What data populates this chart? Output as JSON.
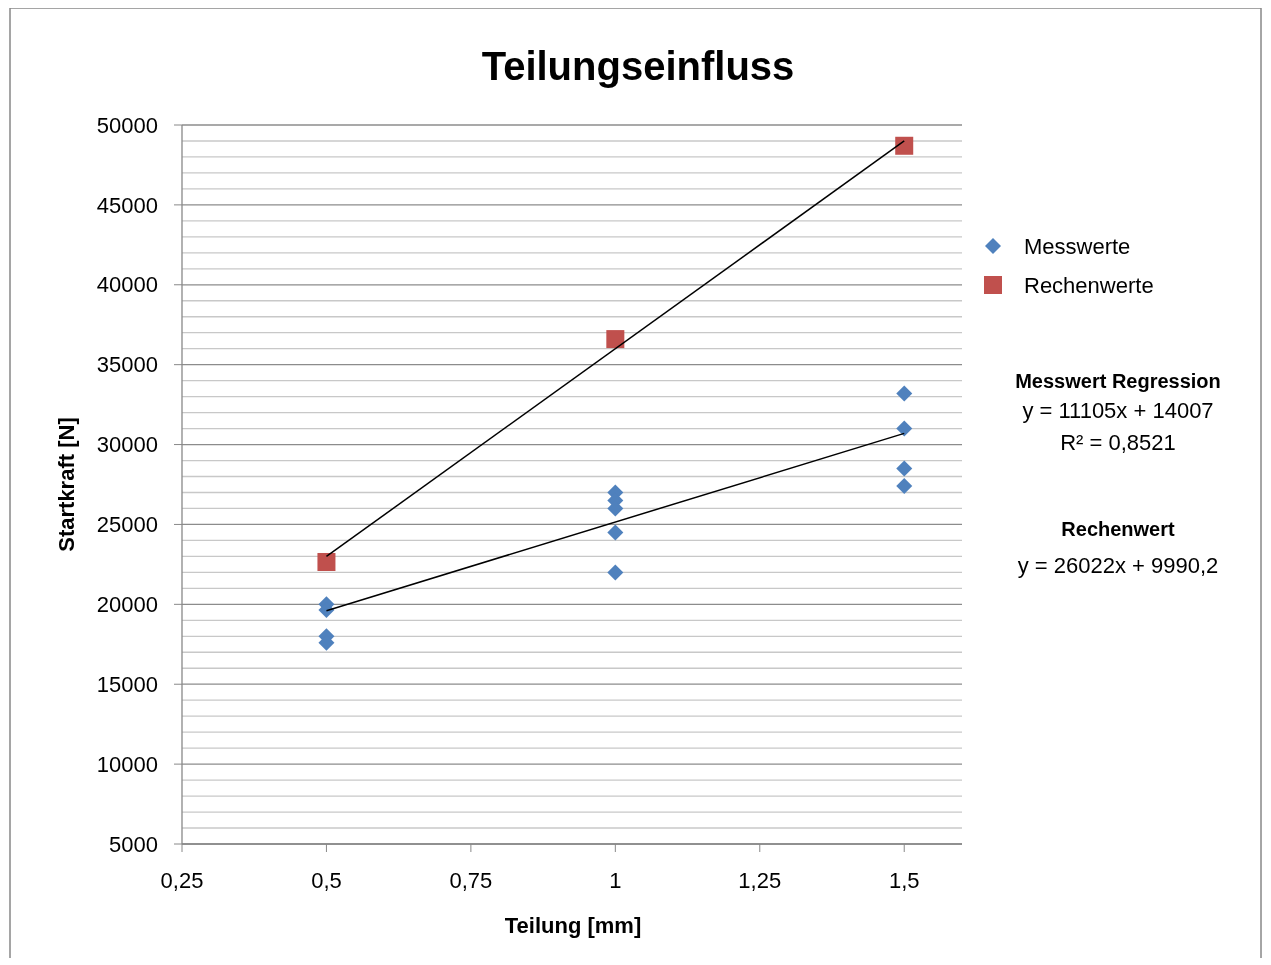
{
  "chart_data": {
    "type": "scatter",
    "title": "Teilungseinfluss",
    "xlabel": "Teilung [mm]",
    "ylabel": "Startkraft [N]",
    "xlim": [
      0.25,
      1.6
    ],
    "xticks": [
      {
        "value": 0.25,
        "label": "0,25"
      },
      {
        "value": 0.5,
        "label": "0,5"
      },
      {
        "value": 0.75,
        "label": "0,75"
      },
      1,
      {
        "value": 1.25,
        "label": "1,25"
      },
      {
        "value": 1.5,
        "label": "1,5"
      }
    ],
    "ylim": [
      5000,
      50000
    ],
    "yticks": [
      5000,
      {
        "value": 6000,
        "label": null
      },
      {
        "value": 7000,
        "label": null
      },
      {
        "value": 8000,
        "label": null
      },
      {
        "value": 9000,
        "label": null
      },
      10000,
      {
        "value": 11000,
        "label": null
      },
      {
        "value": 12000,
        "label": null
      },
      {
        "value": 13000,
        "label": null
      },
      {
        "value": 14000,
        "label": null
      },
      15000,
      {
        "value": 16000,
        "label": null
      },
      {
        "value": 17000,
        "label": null
      },
      {
        "value": 18000,
        "label": null
      },
      {
        "value": 19000,
        "label": null
      },
      20000,
      {
        "value": 21000,
        "label": null
      },
      {
        "value": 22000,
        "label": null
      },
      {
        "value": 23000,
        "label": null
      },
      {
        "value": 24000,
        "label": null
      },
      25000,
      {
        "value": 26000,
        "label": null
      },
      {
        "value": 27000,
        "label": null
      },
      {
        "value": 28000,
        "label": null
      },
      {
        "value": 29000,
        "label": null
      },
      30000,
      {
        "value": 31000,
        "label": null
      },
      {
        "value": 32000,
        "label": null
      },
      {
        "value": 33000,
        "label": null
      },
      {
        "value": 34000,
        "label": null
      },
      35000,
      {
        "value": 36000,
        "label": null
      },
      {
        "value": 37000,
        "label": null
      },
      {
        "value": 38000,
        "label": null
      },
      {
        "value": 39000,
        "label": null
      },
      40000,
      {
        "value": 41000,
        "label": null
      },
      {
        "value": 42000,
        "label": null
      },
      {
        "value": 43000,
        "label": null
      },
      {
        "value": 44000,
        "label": null
      },
      45000,
      {
        "value": 46000,
        "label": null
      },
      {
        "value": 47000,
        "label": null
      },
      {
        "value": 48000,
        "label": null
      },
      {
        "value": 49000,
        "label": null
      },
      50000
    ],
    "grid": "y",
    "legend": "right",
    "series": [
      {
        "name": "Messwerte",
        "color": "#4f81bd",
        "marker": "diamond",
        "x": [
          0.5,
          0.5,
          0.5,
          0.5,
          1,
          1,
          1,
          1,
          1,
          1.5,
          1.5,
          1.5,
          1.5
        ],
        "values": [
          20000,
          19650,
          18000,
          17600,
          27000,
          26500,
          26000,
          24500,
          22000,
          33200,
          31000,
          28500,
          27400
        ]
      },
      {
        "name": "Rechenwerte",
        "color": "#c0504d",
        "marker": "square",
        "x": [
          0.5,
          1,
          1.5
        ],
        "values": [
          22650,
          36600,
          48700
        ]
      },
      {
        "type": "line",
        "color": "#000000",
        "marker": "none",
        "x": [
          0.5,
          1.5
        ],
        "values": [
          19600,
          30700
        ]
      },
      {
        "type": "line",
        "color": "#000000",
        "marker": "none",
        "x": [
          0.5,
          1.5
        ],
        "values": [
          23000,
          49000
        ]
      }
    ],
    "annotations": [
      "Messwert Regression",
      "y = 11105x + 14007",
      "R² = 0,8521",
      "Rechenwert",
      "y = 26022x + 9990,2"
    ]
  }
}
